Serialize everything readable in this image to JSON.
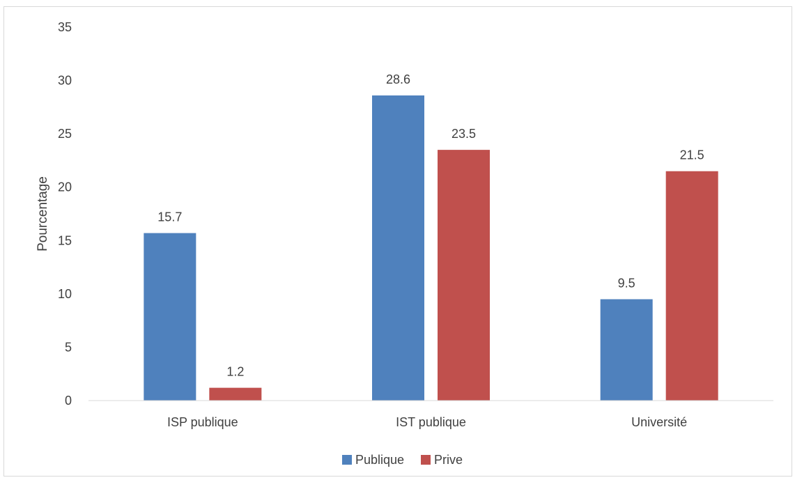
{
  "chart_data": {
    "type": "bar",
    "title": "",
    "xlabel": "",
    "ylabel": "Pourcentage",
    "categories": [
      "ISP publique",
      "IST publique",
      "Université"
    ],
    "series": [
      {
        "name": "Publique",
        "values": [
          15.7,
          28.6,
          9.5
        ],
        "color": "#4F81BD"
      },
      {
        "name": "Prive",
        "values": [
          1.2,
          23.5,
          21.5
        ],
        "color": "#C0504D"
      }
    ],
    "ylim": [
      0,
      35
    ],
    "yticks": [
      0,
      5,
      10,
      15,
      20,
      25,
      30,
      35
    ],
    "grid": false,
    "legend_position": "bottom",
    "data_labels": true
  },
  "colors": {
    "axis": "#d9d9d9",
    "text": "#404040",
    "frame": "#d9d9d9"
  }
}
